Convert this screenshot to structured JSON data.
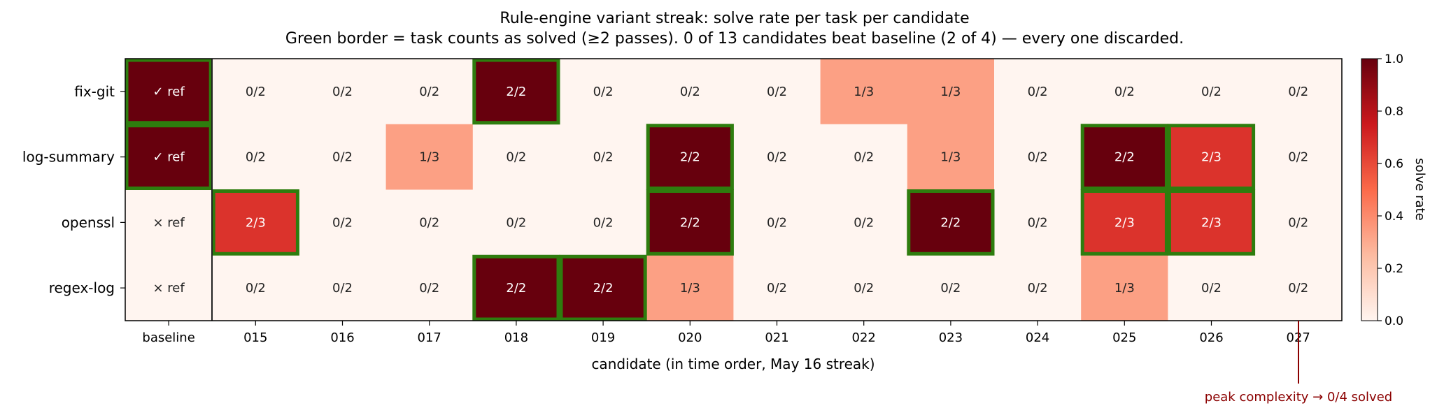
{
  "chart_data": {
    "type": "heatmap",
    "title": "Rule-engine variant streak: solve rate per task per candidate",
    "subtitle": "Green border = task counts as solved (≥2 passes). 0 of 13 candidates beat baseline (2 of 4) — every one discarded.",
    "xlabel": "candidate (in time order, May 16 streak)",
    "ylabel": "",
    "columns": [
      "baseline",
      "015",
      "016",
      "017",
      "018",
      "019",
      "020",
      "021",
      "022",
      "023",
      "024",
      "025",
      "026",
      "027"
    ],
    "rows": [
      "fix-git",
      "log-summary",
      "openssl",
      "regex-log"
    ],
    "cells": [
      [
        {
          "label": "✓ ref",
          "value": 1.0,
          "solved": true
        },
        {
          "label": "0/2",
          "value": 0.0,
          "solved": false
        },
        {
          "label": "0/2",
          "value": 0.0,
          "solved": false
        },
        {
          "label": "0/2",
          "value": 0.0,
          "solved": false
        },
        {
          "label": "2/2",
          "value": 1.0,
          "solved": true
        },
        {
          "label": "0/2",
          "value": 0.0,
          "solved": false
        },
        {
          "label": "0/2",
          "value": 0.0,
          "solved": false
        },
        {
          "label": "0/2",
          "value": 0.0,
          "solved": false
        },
        {
          "label": "1/3",
          "value": 0.333,
          "solved": false
        },
        {
          "label": "1/3",
          "value": 0.333,
          "solved": false
        },
        {
          "label": "0/2",
          "value": 0.0,
          "solved": false
        },
        {
          "label": "0/2",
          "value": 0.0,
          "solved": false
        },
        {
          "label": "0/2",
          "value": 0.0,
          "solved": false
        },
        {
          "label": "0/2",
          "value": 0.0,
          "solved": false
        }
      ],
      [
        {
          "label": "✓ ref",
          "value": 1.0,
          "solved": true
        },
        {
          "label": "0/2",
          "value": 0.0,
          "solved": false
        },
        {
          "label": "0/2",
          "value": 0.0,
          "solved": false
        },
        {
          "label": "1/3",
          "value": 0.333,
          "solved": false
        },
        {
          "label": "0/2",
          "value": 0.0,
          "solved": false
        },
        {
          "label": "0/2",
          "value": 0.0,
          "solved": false
        },
        {
          "label": "2/2",
          "value": 1.0,
          "solved": true
        },
        {
          "label": "0/2",
          "value": 0.0,
          "solved": false
        },
        {
          "label": "0/2",
          "value": 0.0,
          "solved": false
        },
        {
          "label": "1/3",
          "value": 0.333,
          "solved": false
        },
        {
          "label": "0/2",
          "value": 0.0,
          "solved": false
        },
        {
          "label": "2/2",
          "value": 1.0,
          "solved": true
        },
        {
          "label": "2/3",
          "value": 0.667,
          "solved": true
        },
        {
          "label": "0/2",
          "value": 0.0,
          "solved": false
        }
      ],
      [
        {
          "label": "× ref",
          "value": 0.0,
          "solved": false
        },
        {
          "label": "2/3",
          "value": 0.667,
          "solved": true
        },
        {
          "label": "0/2",
          "value": 0.0,
          "solved": false
        },
        {
          "label": "0/2",
          "value": 0.0,
          "solved": false
        },
        {
          "label": "0/2",
          "value": 0.0,
          "solved": false
        },
        {
          "label": "0/2",
          "value": 0.0,
          "solved": false
        },
        {
          "label": "2/2",
          "value": 1.0,
          "solved": true
        },
        {
          "label": "0/2",
          "value": 0.0,
          "solved": false
        },
        {
          "label": "0/2",
          "value": 0.0,
          "solved": false
        },
        {
          "label": "2/2",
          "value": 1.0,
          "solved": true
        },
        {
          "label": "0/2",
          "value": 0.0,
          "solved": false
        },
        {
          "label": "2/3",
          "value": 0.667,
          "solved": true
        },
        {
          "label": "2/3",
          "value": 0.667,
          "solved": true
        },
        {
          "label": "0/2",
          "value": 0.0,
          "solved": false
        }
      ],
      [
        {
          "label": "× ref",
          "value": 0.0,
          "solved": false
        },
        {
          "label": "0/2",
          "value": 0.0,
          "solved": false
        },
        {
          "label": "0/2",
          "value": 0.0,
          "solved": false
        },
        {
          "label": "0/2",
          "value": 0.0,
          "solved": false
        },
        {
          "label": "2/2",
          "value": 1.0,
          "solved": true
        },
        {
          "label": "2/2",
          "value": 1.0,
          "solved": true
        },
        {
          "label": "1/3",
          "value": 0.333,
          "solved": false
        },
        {
          "label": "0/2",
          "value": 0.0,
          "solved": false
        },
        {
          "label": "0/2",
          "value": 0.0,
          "solved": false
        },
        {
          "label": "0/2",
          "value": 0.0,
          "solved": false
        },
        {
          "label": "0/2",
          "value": 0.0,
          "solved": false
        },
        {
          "label": "1/3",
          "value": 0.333,
          "solved": false
        },
        {
          "label": "0/2",
          "value": 0.0,
          "solved": false
        },
        {
          "label": "0/2",
          "value": 0.0,
          "solved": false
        }
      ]
    ],
    "colorbar": {
      "label": "solve rate",
      "range": [
        0.0,
        1.0
      ],
      "ticks": [
        "0.0",
        "0.2",
        "0.4",
        "0.6",
        "0.8",
        "1.0"
      ],
      "colormap": "Reds"
    },
    "annotation": {
      "text": "peak complexity → 0/4 solved",
      "column": "027",
      "color": "#8b0000"
    },
    "solved_border_color": "#2e7d0e",
    "grid": false
  }
}
